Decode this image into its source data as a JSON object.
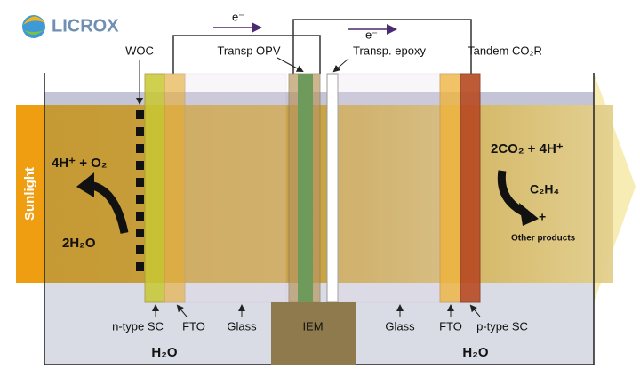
{
  "logo": {
    "text": "LICROX"
  },
  "electrons": [
    "e⁻",
    "e⁻"
  ],
  "top_labels": {
    "woc": "WOC",
    "opv": "Transp OPV",
    "epoxy": "Transp. epoxy",
    "tandem": "Tandem CO₂R"
  },
  "sunlight": "Sunlight",
  "left_reaction": {
    "products": "4H⁺ + O₂",
    "reactant": "2H₂O"
  },
  "right_reaction": {
    "reactants": "2CO₂ + 4H⁺",
    "product": "C₂H₄",
    "plus": "+",
    "other": "Other products"
  },
  "bottom_labels": {
    "n_type": "n-type SC",
    "fto_left": "FTO",
    "glass_left": "Glass",
    "iem": "IEM",
    "glass_right": "Glass",
    "fto_right": "FTO",
    "p_type": "p-type SC"
  },
  "water_labels": [
    "H₂O",
    "H₂O"
  ]
}
